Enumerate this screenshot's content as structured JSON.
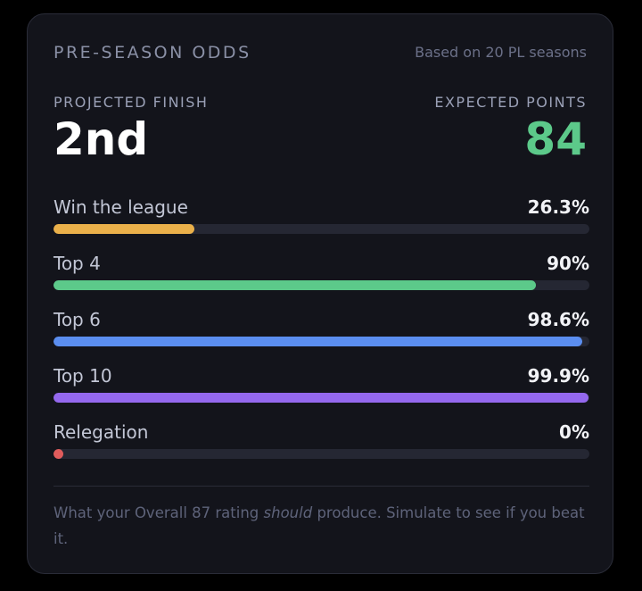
{
  "header": {
    "title": "PRE-SEASON ODDS",
    "note": "Based on 20 PL seasons"
  },
  "projection": {
    "finish_label": "PROJECTED FINISH",
    "finish": "2nd",
    "points_label": "EXPECTED POINTS",
    "points": 84
  },
  "odds": [
    {
      "name": "Win the league",
      "value": 26.3,
      "value_label": "26.3%",
      "color": "#eab04a"
    },
    {
      "name": "Top 4",
      "value": 90,
      "value_label": "90%",
      "color": "#5cc98a"
    },
    {
      "name": "Top 6",
      "value": 98.6,
      "value_label": "98.6%",
      "color": "#5b8ef0"
    },
    {
      "name": "Top 10",
      "value": 99.9,
      "value_label": "99.9%",
      "color": "#9468ee"
    },
    {
      "name": "Relegation",
      "value": 0,
      "value_label": "0%",
      "color": "#e05c5c"
    }
  ],
  "footer": {
    "before": "What your Overall 87 rating ",
    "emphasis": "should",
    "after": " produce. Simulate to see if you beat it."
  }
}
